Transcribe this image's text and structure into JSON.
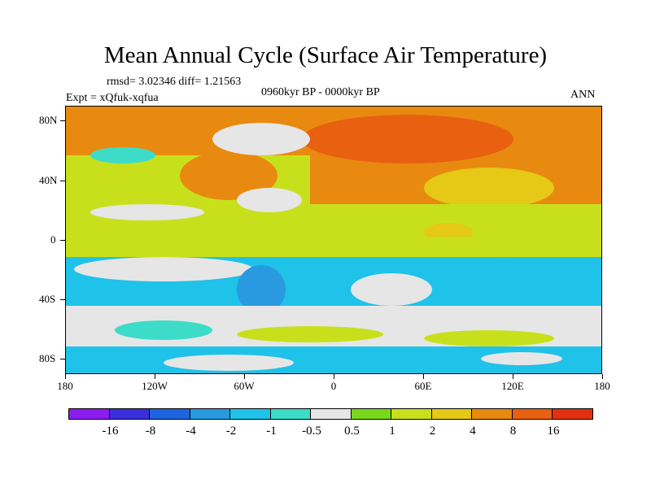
{
  "title": "Mean Annual Cycle (Surface Air Temperature)",
  "stats": "rmsd= 3.02346 diff= 1.21563",
  "experiment": "Expt = xQfuk-xqfua",
  "period": "0960kyr BP - 0000kyr BP",
  "season": "ANN",
  "lat_labels": [
    "80N",
    "40N",
    "0",
    "40S",
    "80S"
  ],
  "lon_labels": [
    "180",
    "120W",
    "60W",
    "0",
    "60E",
    "120E",
    "180"
  ],
  "colorbar": {
    "labels": [
      "-16",
      "-8",
      "-4",
      "-2",
      "-1",
      "-0.5",
      "0.5",
      "1",
      "2",
      "4",
      "8",
      "16"
    ],
    "colors": [
      "#8a1cf0",
      "#3a2fdc",
      "#1e63e0",
      "#2a9ae0",
      "#1fc2e8",
      "#3cdcc8",
      "#e6e6e6",
      "#7ad81a",
      "#c8e01c",
      "#e6c816",
      "#e88a10",
      "#e86010",
      "#e03010"
    ]
  }
}
